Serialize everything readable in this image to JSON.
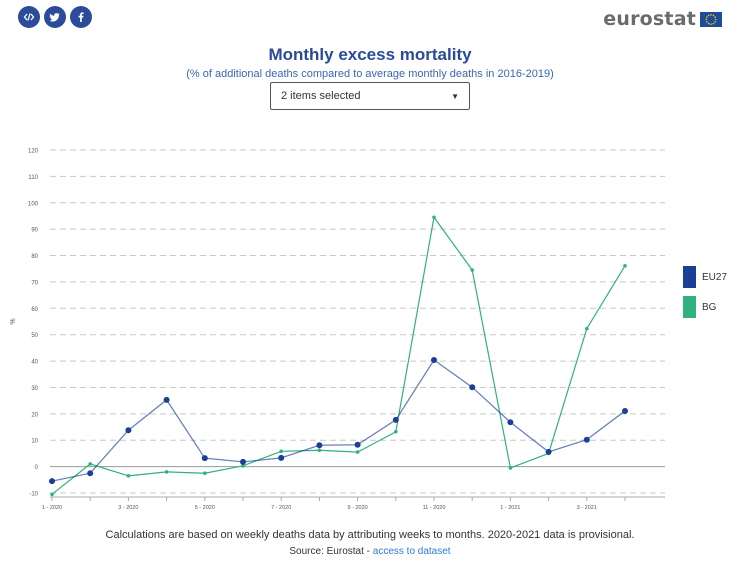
{
  "share": [
    {
      "icon": "embed-icon",
      "glyph": "</>"
    },
    {
      "icon": "twitter-icon",
      "glyph": "t"
    },
    {
      "icon": "facebook-icon",
      "glyph": "f"
    }
  ],
  "brand": {
    "name": "eurostat"
  },
  "header": {
    "title": "Monthly excess mortality",
    "subtitle": "(% of additional deaths compared to average monthly deaths in 2016-2019)"
  },
  "selector": {
    "label": "2 items selected"
  },
  "colors": {
    "eu27": "#1a3f96",
    "bg": "#2fb27d",
    "grid": "#c8c8c8",
    "zero": "#999999",
    "text": "#555555",
    "eu_flag": "#1f4b9b",
    "eu_stars": "#ffcc00"
  },
  "chart_data": {
    "type": "line",
    "title": "Monthly excess mortality",
    "subtitle": "(% of additional deaths compared to average monthly deaths in 2016-2019)",
    "ylabel": "%",
    "xlabel": "",
    "ylim": [
      -10,
      120
    ],
    "yticks": [
      -10,
      0,
      10,
      20,
      30,
      40,
      50,
      60,
      70,
      80,
      90,
      100,
      110,
      120
    ],
    "grid": true,
    "x": [
      "1 - 2020",
      "2 - 2020",
      "3 - 2020",
      "4 - 2020",
      "5 - 2020",
      "6 - 2020",
      "7 - 2020",
      "8 - 2020",
      "9 - 2020",
      "10 - 2020",
      "11 - 2020",
      "12 - 2020",
      "1 - 2021",
      "2 - 2021",
      "3 - 2021",
      "4 - 2021"
    ],
    "xtick_labels": [
      "1 - 2020",
      "",
      "3 - 2020",
      "",
      "5 - 2020",
      "",
      "7 - 2020",
      "",
      "9 - 2020",
      "",
      "11 - 2020",
      "",
      "1 - 2021",
      "",
      "3 - 2021",
      ""
    ],
    "series": [
      {
        "name": "EU27",
        "key": "eu27",
        "values": [
          -5.5,
          -2.5,
          13.8,
          25.3,
          3.2,
          1.8,
          3.3,
          8.1,
          8.3,
          17.7,
          40.4,
          30.1,
          16.8,
          5.6,
          10.2,
          21.1
        ]
      },
      {
        "name": "BG",
        "key": "bg",
        "values": [
          -10.5,
          1.0,
          -3.5,
          -2.0,
          -2.5,
          0.3,
          5.8,
          6.2,
          5.5,
          13.2,
          94.5,
          74.5,
          -0.5,
          5.0,
          52.3,
          76.1
        ]
      }
    ],
    "legend_position": "right"
  },
  "footer": {
    "note": "Calculations are based on weekly deaths data by attributing weeks to months. 2020-2021 data is provisional.",
    "source_prefix": "Source: Eurostat - ",
    "link": "access to dataset"
  }
}
